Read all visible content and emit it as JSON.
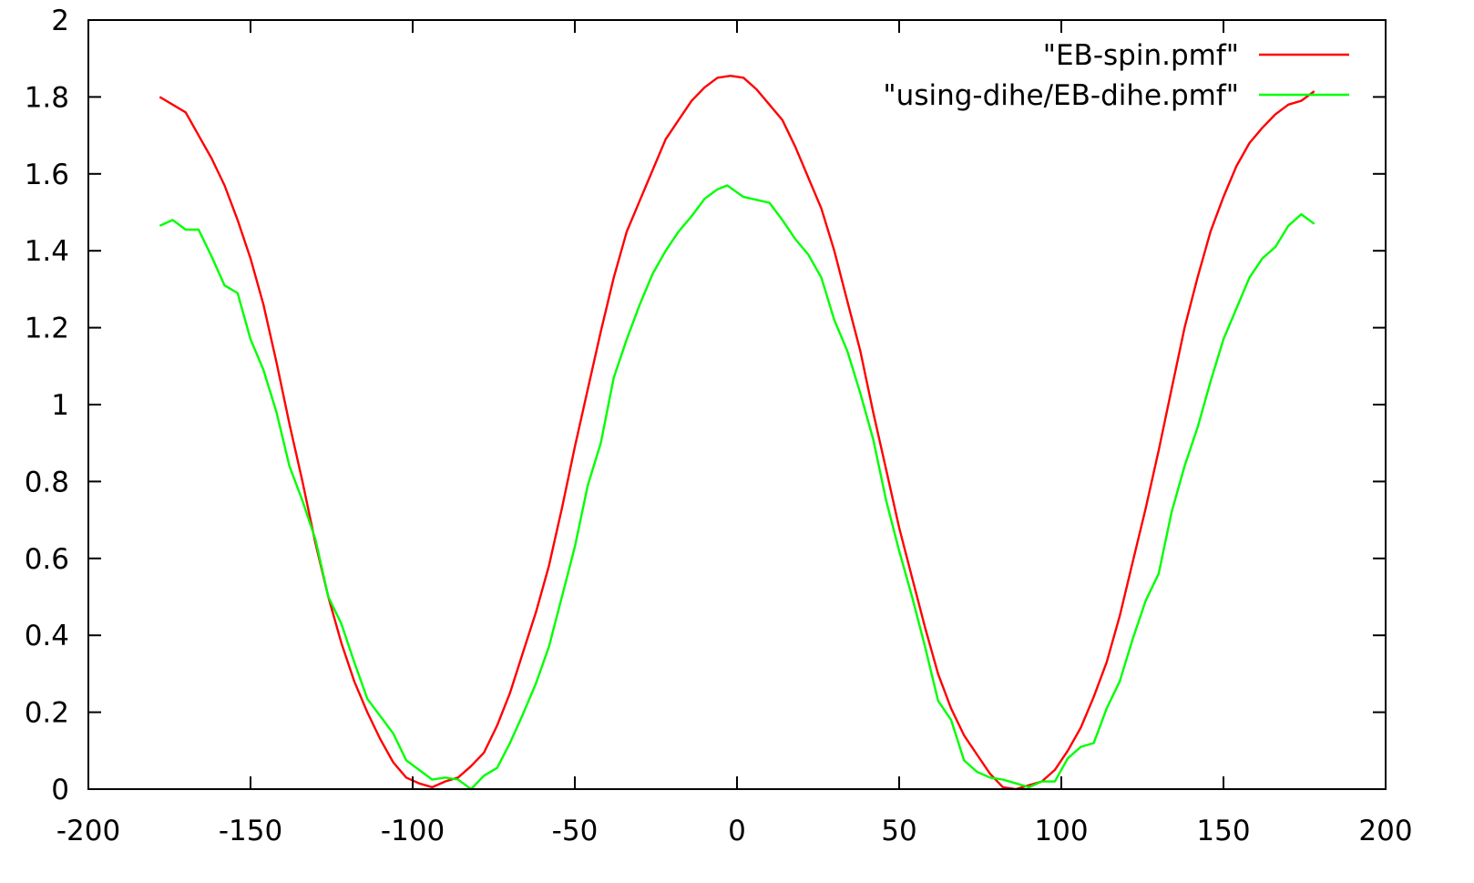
{
  "chart_data": {
    "type": "line",
    "title": "",
    "xlabel": "",
    "ylabel": "",
    "xlim": [
      -200,
      200
    ],
    "ylim": [
      0,
      2
    ],
    "xticks": [
      -200,
      -150,
      -100,
      -50,
      0,
      50,
      100,
      150,
      200
    ],
    "yticks": [
      0,
      0.2,
      0.4,
      0.6,
      0.8,
      1,
      1.2,
      1.4,
      1.6,
      1.8,
      2
    ],
    "xtick_labels": [
      "-200",
      "-150",
      "-100",
      "-50",
      "0",
      "50",
      "100",
      "150",
      "200"
    ],
    "ytick_labels": [
      "0",
      "0.2",
      "0.4",
      "0.6",
      "0.8",
      "1",
      "1.2",
      "1.4",
      "1.6",
      "1.8",
      "2"
    ],
    "grid": false,
    "legend_position": "top-right",
    "series": [
      {
        "name": "\"EB-spin.pmf\"",
        "color": "#ff0000",
        "x": [
          -178,
          -170,
          -166,
          -162,
          -158,
          -154,
          -150,
          -146,
          -142,
          -138,
          -134,
          -130,
          -126,
          -122,
          -118,
          -114,
          -110,
          -106,
          -102,
          -98,
          -94,
          -90,
          -86,
          -82,
          -78,
          -74,
          -70,
          -66,
          -62,
          -58,
          -54,
          -50,
          -46,
          -42,
          -38,
          -34,
          -30,
          -26,
          -22,
          -18,
          -14,
          -10,
          -6,
          -2,
          2,
          6,
          10,
          14,
          18,
          22,
          26,
          30,
          34,
          38,
          42,
          46,
          50,
          54,
          58,
          62,
          66,
          70,
          74,
          78,
          82,
          86,
          90,
          94,
          98,
          102,
          106,
          110,
          114,
          118,
          122,
          126,
          130,
          134,
          138,
          142,
          146,
          150,
          154,
          158,
          162,
          166,
          170,
          174,
          178
        ],
        "y": [
          1.8,
          1.76,
          1.7,
          1.64,
          1.57,
          1.48,
          1.38,
          1.26,
          1.11,
          0.95,
          0.8,
          0.64,
          0.5,
          0.38,
          0.28,
          0.2,
          0.13,
          0.07,
          0.03,
          0.015,
          0.005,
          0.02,
          0.03,
          0.06,
          0.095,
          0.165,
          0.25,
          0.355,
          0.46,
          0.58,
          0.73,
          0.89,
          1.04,
          1.19,
          1.33,
          1.45,
          1.53,
          1.61,
          1.69,
          1.74,
          1.79,
          1.825,
          1.85,
          1.855,
          1.85,
          1.82,
          1.78,
          1.74,
          1.67,
          1.59,
          1.51,
          1.4,
          1.27,
          1.14,
          0.98,
          0.83,
          0.68,
          0.55,
          0.42,
          0.3,
          0.21,
          0.14,
          0.09,
          0.04,
          0.005,
          0.0,
          0.01,
          0.02,
          0.05,
          0.1,
          0.16,
          0.24,
          0.33,
          0.45,
          0.59,
          0.73,
          0.88,
          1.04,
          1.2,
          1.33,
          1.45,
          1.54,
          1.62,
          1.68,
          1.72,
          1.755,
          1.78,
          1.79,
          1.815
        ]
      },
      {
        "name": "\"using-dihe/EB-dihe.pmf\"",
        "color": "#00ff00",
        "x": [
          -178,
          -174,
          -170,
          -166,
          -162,
          -158,
          -154,
          -150,
          -146,
          -142,
          -138,
          -134,
          -130,
          -126,
          -122,
          -118,
          -114,
          -110,
          -106,
          -102,
          -98,
          -94,
          -90,
          -86,
          -82,
          -78,
          -74,
          -70,
          -66,
          -62,
          -58,
          -54,
          -50,
          -46,
          -42,
          -38,
          -34,
          -30,
          -26,
          -22,
          -18,
          -14,
          -10,
          -6,
          -3,
          2,
          10,
          14,
          18,
          22,
          26,
          30,
          34,
          38,
          42,
          46,
          50,
          54,
          58,
          62,
          66,
          70,
          74,
          78,
          82,
          86,
          90,
          94,
          98,
          102,
          106,
          110,
          114,
          118,
          122,
          126,
          130,
          134,
          138,
          142,
          146,
          150,
          154,
          158,
          162,
          166,
          170,
          174,
          178
        ],
        "y": [
          1.465,
          1.48,
          1.455,
          1.455,
          1.385,
          1.31,
          1.29,
          1.17,
          1.09,
          0.98,
          0.84,
          0.75,
          0.65,
          0.5,
          0.43,
          0.33,
          0.235,
          0.19,
          0.145,
          0.075,
          0.05,
          0.025,
          0.03,
          0.025,
          0.0,
          0.035,
          0.055,
          0.12,
          0.195,
          0.275,
          0.37,
          0.5,
          0.63,
          0.79,
          0.9,
          1.07,
          1.17,
          1.26,
          1.34,
          1.4,
          1.45,
          1.49,
          1.535,
          1.56,
          1.57,
          1.54,
          1.525,
          1.48,
          1.43,
          1.39,
          1.33,
          1.22,
          1.14,
          1.03,
          0.91,
          0.75,
          0.62,
          0.5,
          0.37,
          0.23,
          0.18,
          0.075,
          0.045,
          0.03,
          0.025,
          0.015,
          0.005,
          0.02,
          0.02,
          0.08,
          0.11,
          0.12,
          0.21,
          0.28,
          0.39,
          0.49,
          0.56,
          0.72,
          0.84,
          0.94,
          1.06,
          1.17,
          1.25,
          1.33,
          1.38,
          1.41,
          1.465,
          1.495,
          1.47
        ]
      }
    ]
  }
}
